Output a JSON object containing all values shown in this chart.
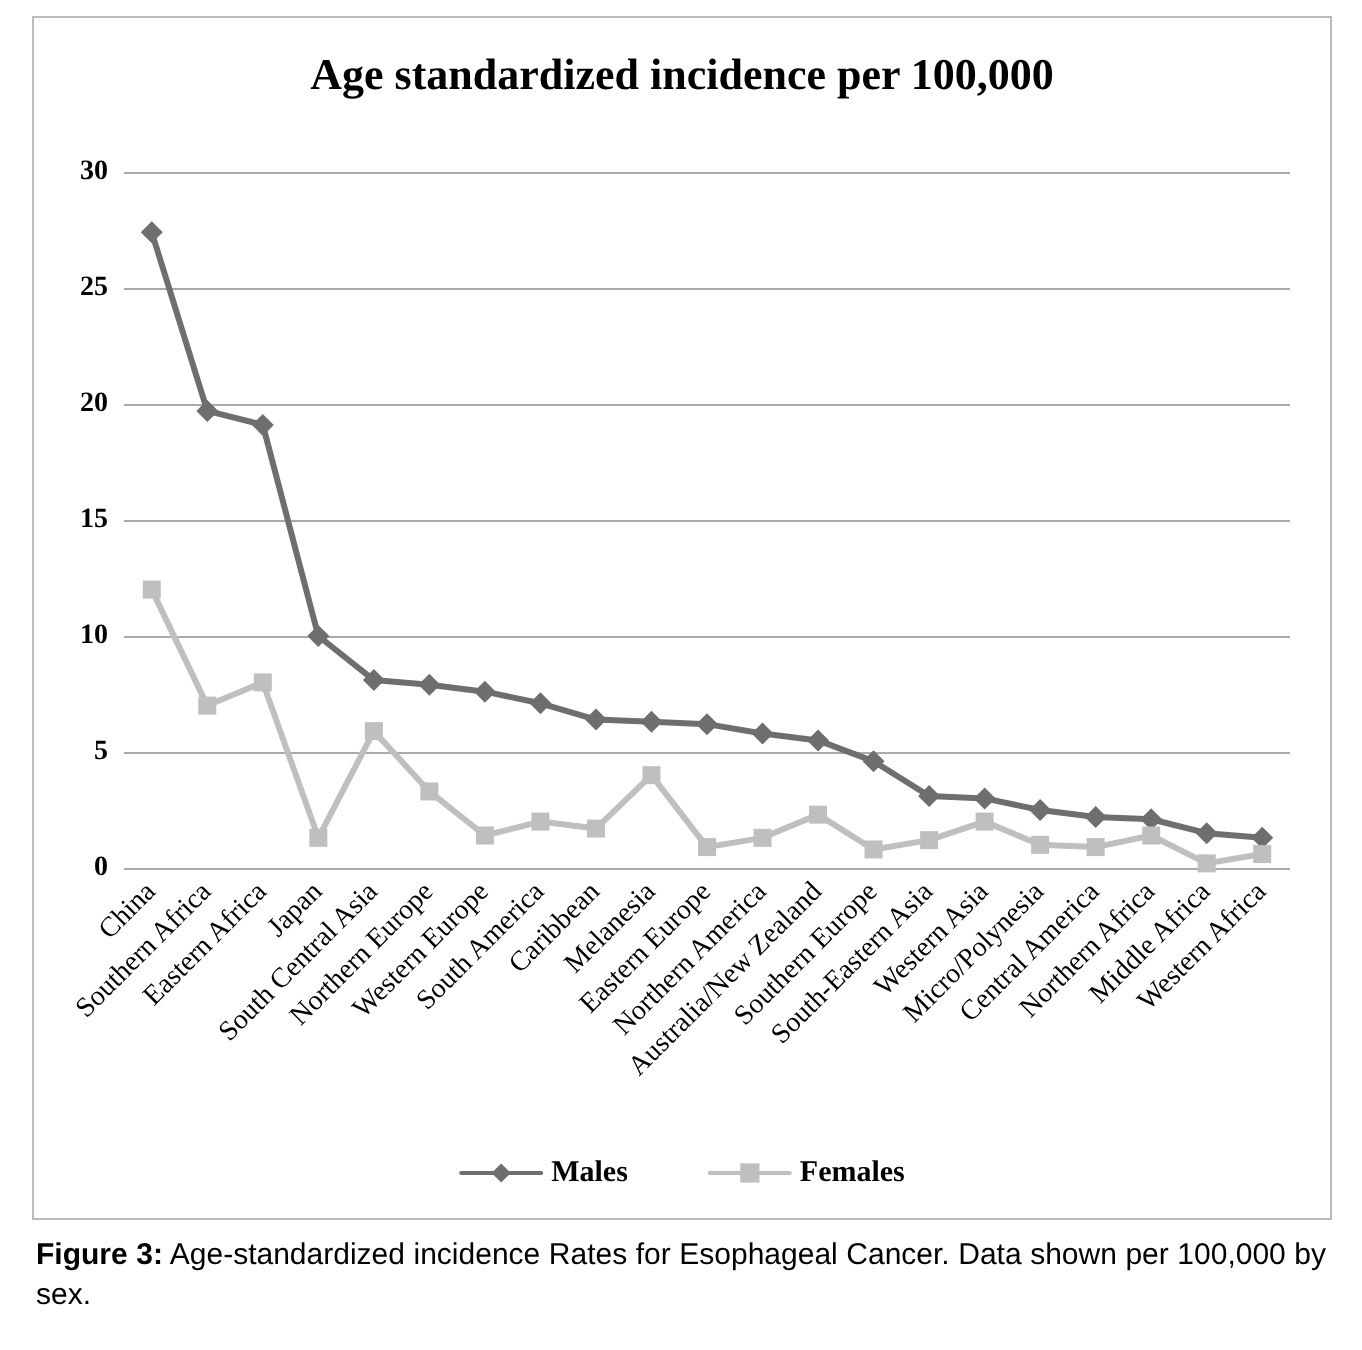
{
  "chart_data": {
    "type": "line",
    "title": "Age standardized incidence per 100,000",
    "categories": [
      "China",
      "Southern Africa",
      "Eastern Africa",
      "Japan",
      "South Central Asia",
      "Northern Europe",
      "Western Europe",
      "South America",
      "Caribbean",
      "Melanesia",
      "Eastern Europe",
      "Northern America",
      "Australia/New Zealand",
      "Southern Europe",
      "South-Eastern Asia",
      "Western Asia",
      "Micro/Polynesia",
      "Central America",
      "Northern Africa",
      "Middle Africa",
      "Western Africa"
    ],
    "series": [
      {
        "name": "Males",
        "color": "#6e6e6e",
        "marker": "diamond",
        "values": [
          27.4,
          19.7,
          19.1,
          10,
          8.1,
          7.9,
          7.6,
          7.1,
          6.4,
          6.3,
          6.2,
          5.8,
          5.5,
          4.6,
          3.1,
          3.0,
          2.5,
          2.2,
          2.1,
          1.5,
          1.3
        ]
      },
      {
        "name": "Females",
        "color": "#bfbfbf",
        "marker": "square",
        "values": [
          12,
          7,
          8,
          1.3,
          5.9,
          3.3,
          1.4,
          2.0,
          1.7,
          4.0,
          0.9,
          1.3,
          2.3,
          0.8,
          1.2,
          2.0,
          1.0,
          0.9,
          1.4,
          0.2,
          0.6
        ]
      }
    ],
    "ylim": [
      0,
      30
    ],
    "yticks": [
      0,
      5,
      10,
      15,
      20,
      25,
      30
    ],
    "grid": "y",
    "legend": "bottom",
    "annotations": [
      "Figure 3: Age-standardized incidence Rates for Esophageal Cancer. Data shown per 100,000 by sex."
    ]
  }
}
